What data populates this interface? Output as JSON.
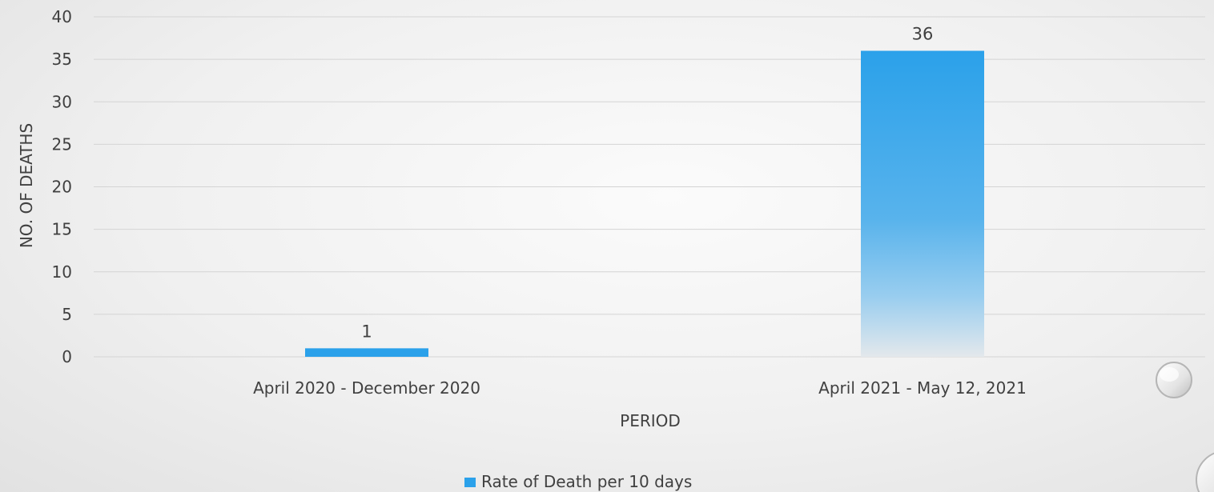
{
  "chart_data": {
    "type": "bar",
    "categories": [
      "April 2020 - December 2020",
      "April 2021 - May 12, 2021"
    ],
    "series": [
      {
        "name": "Rate of Death per 10 days",
        "values": [
          1,
          36
        ]
      }
    ],
    "title": "",
    "xlabel": "PERIOD",
    "ylabel": "NO. OF DEATHS",
    "ylim": [
      0,
      40
    ],
    "yticks": [
      0,
      5,
      10,
      15,
      20,
      25,
      30,
      35,
      40
    ],
    "grid": true,
    "legend_position": "bottom",
    "data_labels": true,
    "colors": {
      "bar_top": "#2ba1ea",
      "bar_bottom": "#e3e8ec",
      "legend_swatch": "#2ba1ea"
    }
  }
}
